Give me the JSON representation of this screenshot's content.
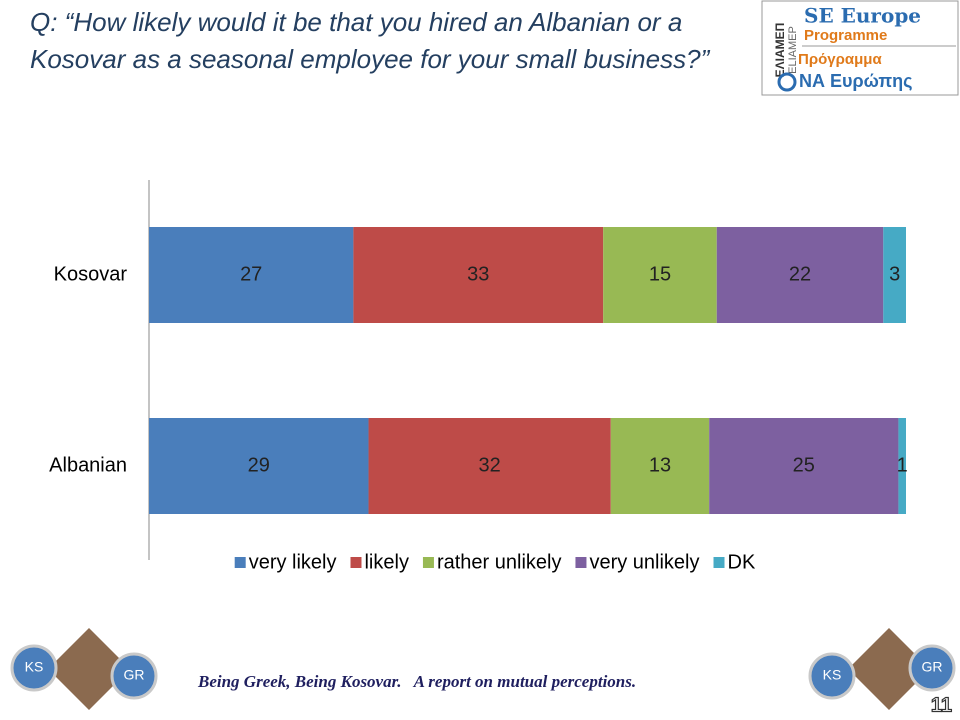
{
  "chart_data": {
    "type": "stacked-horizontal-bar",
    "title": "Q: “How likely would it be that you hired an Albanian or a Kosovar as a seasonal employee for your small business?”",
    "categories": [
      "Kosovar",
      "Albanian"
    ],
    "series": [
      {
        "name": "very likely",
        "color": "#4a7ebb",
        "values": [
          27,
          29
        ]
      },
      {
        "name": "likely",
        "color": "#be4b48",
        "values": [
          33,
          32
        ]
      },
      {
        "name": "rather unlikely",
        "color": "#98b954",
        "values": [
          15,
          13
        ]
      },
      {
        "name": "very unlikely",
        "color": "#7d60a0",
        "values": [
          22,
          25
        ]
      },
      {
        "name": "DK",
        "color": "#46aac5",
        "values": [
          3,
          1
        ]
      }
    ],
    "xlim": [
      0,
      100
    ],
    "legend": "bottom"
  },
  "logo": {
    "acronym_gr": "ΕΛΙΑΜΕΠ",
    "acronym_en": "ELIAMEP",
    "line1": "SE Europe",
    "line2": "Programme",
    "line3": "Πρόγραμμα",
    "line4": "ΝΑ Ευρώπης"
  },
  "footer": {
    "text": "Being Greek, Being Kosovar.   A report on mutual perceptions.",
    "left_badge": "KS",
    "right_badge": "GR",
    "page_number": "11"
  }
}
